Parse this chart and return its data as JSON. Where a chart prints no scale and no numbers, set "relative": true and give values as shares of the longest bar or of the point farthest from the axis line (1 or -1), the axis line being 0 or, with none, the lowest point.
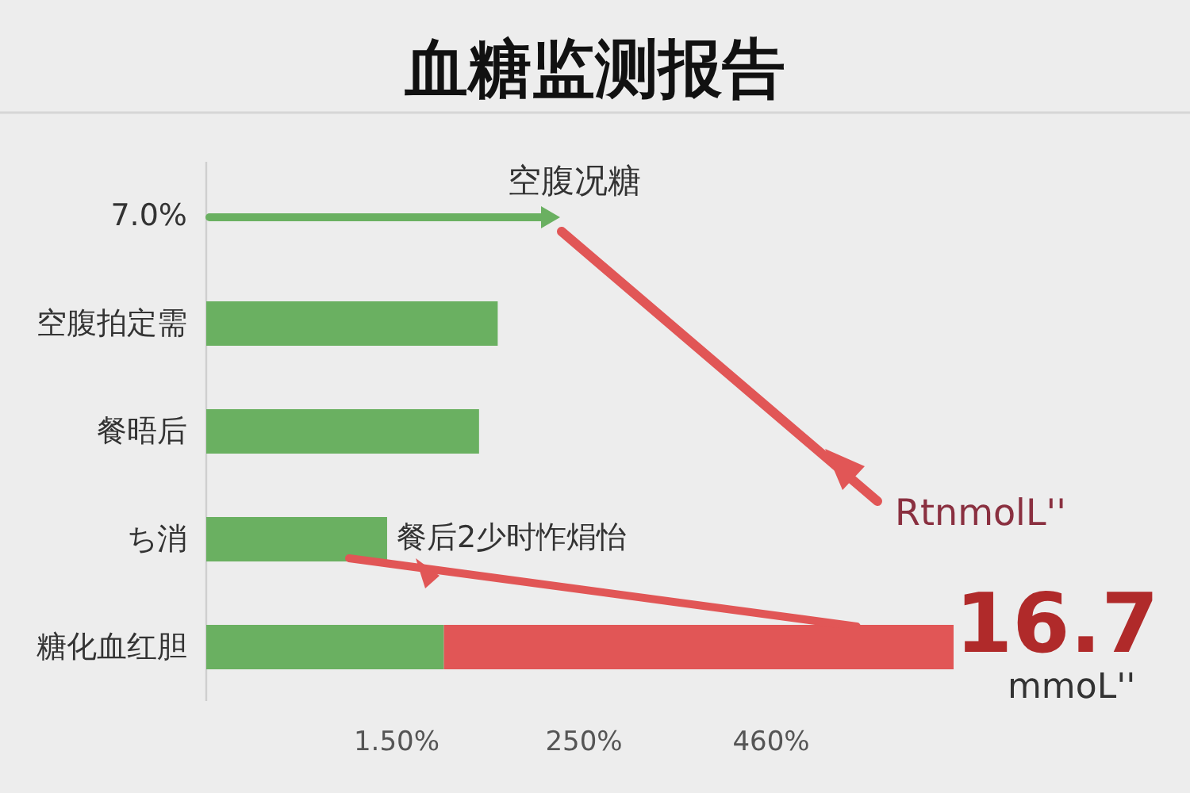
{
  "chart_data": {
    "type": "bar",
    "orientation": "horizontal",
    "stacked": true,
    "relative": true,
    "title": "血糖监测报告",
    "categories": [
      "7.0%",
      "空腹拍定需",
      "餐晤后",
      "ち消",
      "糖化血红胆"
    ],
    "series": [
      {
        "color": "#6ab061",
        "values": [
          null,
          0.39,
          0.365,
          0.242,
          0.318
        ]
      },
      {
        "color": "#e15656",
        "values": [
          null,
          null,
          null,
          null,
          0.682
        ]
      }
    ],
    "annotations": [
      "空腹况糖",
      "餐后2少时怍焆怡",
      "RtnmolL''",
      "16.7",
      "mmoL''",
      "1.50%",
      "250%",
      "460%"
    ]
  }
}
